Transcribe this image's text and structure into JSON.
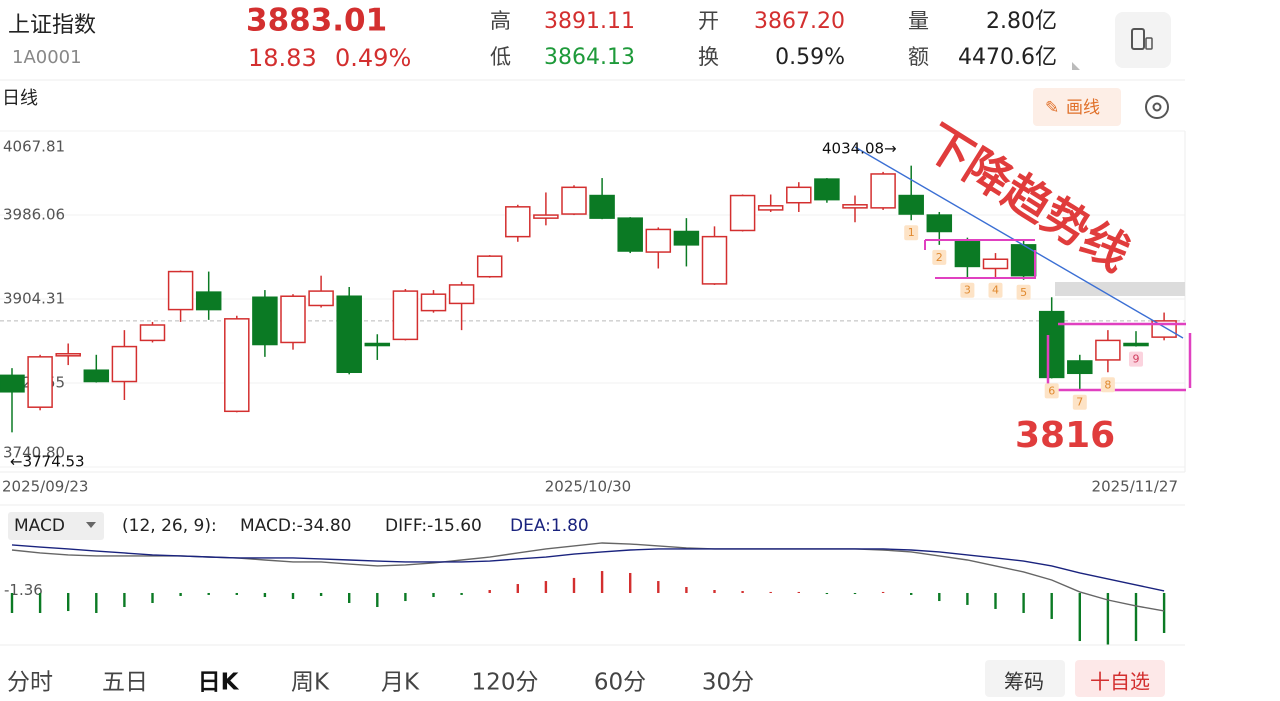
{
  "header": {
    "name": "上证指数",
    "code": "1A0001",
    "price": "3883.01",
    "change": "18.83",
    "change_pct": "0.49%",
    "up_color": "#d32f2f",
    "stats": [
      {
        "label": "高",
        "value": "3891.11",
        "color": "#d32f2f"
      },
      {
        "label": "低",
        "value": "3864.13",
        "color": "#1e9a3a"
      },
      {
        "label": "开",
        "value": "3867.20",
        "color": "#d32f2f"
      },
      {
        "label": "换",
        "value": "0.59%",
        "color": "#222222"
      },
      {
        "label": "量",
        "value": "2.80亿",
        "color": "#222222"
      },
      {
        "label": "额",
        "value": "4470.6亿",
        "color": "#222222"
      }
    ]
  },
  "chart_data": [
    {
      "type": "candlestick",
      "period": "日线",
      "draw_button": "画线",
      "categories": [
        "2025/09/23",
        null,
        null,
        null,
        null,
        null,
        null,
        null,
        null,
        null,
        null,
        null,
        null,
        null,
        null,
        null,
        null,
        null,
        null,
        null,
        "2025/10/30",
        null,
        null,
        null,
        null,
        null,
        null,
        null,
        null,
        null,
        null,
        null,
        null,
        null,
        null,
        null,
        null,
        null,
        null,
        null,
        null,
        "2025/11/27"
      ],
      "open": [
        3830,
        3799,
        3849,
        3835,
        3824,
        3864,
        3894,
        3911,
        3795,
        3906,
        3862,
        3898,
        3907,
        3861,
        3865,
        3893,
        3900,
        3926,
        3965,
        3983,
        3987,
        4005,
        3983,
        3950,
        3970,
        3919,
        3971,
        3991,
        3998,
        4021,
        3993,
        3993,
        4005,
        3986,
        3960,
        3934,
        3957,
        3892,
        3844,
        3845,
        3861,
        3867.2
      ],
      "high": [
        3837,
        3850,
        3861,
        3850,
        3874,
        3882,
        3932,
        3931,
        3888,
        3913,
        3909,
        3927,
        3916,
        3870,
        3914,
        3913,
        3921,
        3947,
        3996,
        4008,
        4015,
        4022,
        3984,
        3974,
        3983,
        3975,
        4006,
        4006,
        4018,
        4022,
        4005,
        4028,
        4034.08,
        3989,
        3964,
        3949,
        3962,
        3906,
        3850,
        3874,
        3873,
        3891.1
      ],
      "low": [
        3774.53,
        3796,
        3840,
        3823,
        3806,
        3862,
        3882,
        3884,
        3794,
        3848,
        3855,
        3896,
        3831,
        3845,
        3864,
        3891,
        3874,
        3925,
        3960,
        3976,
        3986,
        3982,
        3949,
        3934,
        3936,
        3918,
        3970,
        3989,
        3989,
        3998,
        3979,
        3991,
        3981,
        3957,
        3925,
        3925,
        3923,
        3827,
        3816,
        3833,
        3858,
        3864.1
      ],
      "close": [
        3814,
        3848,
        3851,
        3824,
        3858,
        3879,
        3931,
        3894,
        3885,
        3860,
        3907,
        3912,
        3833,
        3859,
        3912,
        3909,
        3918,
        3946,
        3994,
        3986,
        4013,
        3983,
        3951,
        3972,
        3957,
        3965,
        4005,
        3995,
        4013,
        4001,
        3996,
        4026,
        3987,
        3970,
        3936,
        3943,
        3927,
        3828,
        3832,
        3864,
        3859,
        3883.01
      ],
      "up_color": "#d32f2f",
      "down_color": "#0b7a24",
      "ylim": [
        3740.8,
        4067.81
      ],
      "yticks": [
        4067.81,
        3986.06,
        3904.31,
        3822.55,
        {
          "value": 3740.8,
          "label": "3740.80"
        }
      ],
      "grid": true,
      "annotations": [
        "4034.08→",
        "←3774.53",
        "下降趋势线",
        "3816"
      ],
      "markers": [
        "1",
        "2",
        "3",
        "4",
        "5",
        "6",
        "7",
        "8",
        "9"
      ]
    },
    {
      "type": "macd",
      "indicator": "MACD",
      "params": "(12, 26, 9):",
      "readouts": [
        "MACD:-34.80",
        "DIFF:-15.60",
        "DEA:1.80"
      ],
      "histogram": [
        -17.4,
        -17.4,
        -15.7,
        -17.4,
        -12.2,
        -8.7,
        -2.6,
        -1.7,
        -1.7,
        -3.5,
        -5.2,
        -2.6,
        -8.7,
        -12.2,
        -7.0,
        -3.5,
        -1.7,
        2.6,
        7.8,
        10.4,
        13.1,
        19.1,
        17.4,
        10.4,
        5.2,
        2.6,
        1.7,
        0.9,
        0.9,
        -0.9,
        -0.9,
        0.9,
        -1.7,
        -7.0,
        -10.4,
        -13.9,
        -17.4,
        -22.6,
        -41.8,
        -45.2,
        -41.8,
        -34.8
      ],
      "diff": [
        37.4,
        34.8,
        33.1,
        32.2,
        32.2,
        32.2,
        32.2,
        31.3,
        30.5,
        28.7,
        27.0,
        27.0,
        25.2,
        23.5,
        24.4,
        26.1,
        28.7,
        31.3,
        34.8,
        38.3,
        40.9,
        43.5,
        42.6,
        40.9,
        39.2,
        38.3,
        38.3,
        38.3,
        38.3,
        38.3,
        38.3,
        37.4,
        35.7,
        32.2,
        28.7,
        23.5,
        18.3,
        11.3,
        0.9,
        -6.1,
        -11.3,
        -15.6
      ],
      "dea": [
        41.8,
        40.0,
        38.3,
        36.5,
        34.8,
        33.1,
        32.2,
        31.3,
        30.5,
        30.5,
        30.5,
        29.6,
        28.7,
        27.8,
        27.0,
        27.0,
        27.0,
        27.8,
        29.6,
        31.3,
        33.9,
        35.7,
        37.4,
        38.3,
        38.3,
        38.3,
        38.3,
        38.3,
        38.3,
        38.3,
        38.3,
        38.3,
        37.4,
        35.7,
        33.1,
        30.5,
        27.8,
        23.5,
        17.4,
        12.2,
        7.0,
        1.8
      ],
      "diff_color": "#666666",
      "dea_color": "#1a237e",
      "up_color": "#d32f2f",
      "down_color": "#0b7a24",
      "ylim": [
        -40.9,
        46.1
      ],
      "yticks": [
        -1.36
      ]
    }
  ],
  "tabs": [
    "分时",
    "五日",
    "日K",
    "周K",
    "月K",
    "120分",
    "60分",
    "30分"
  ],
  "active_tab": 2,
  "right_buttons": [
    "筹码",
    "十自选"
  ]
}
